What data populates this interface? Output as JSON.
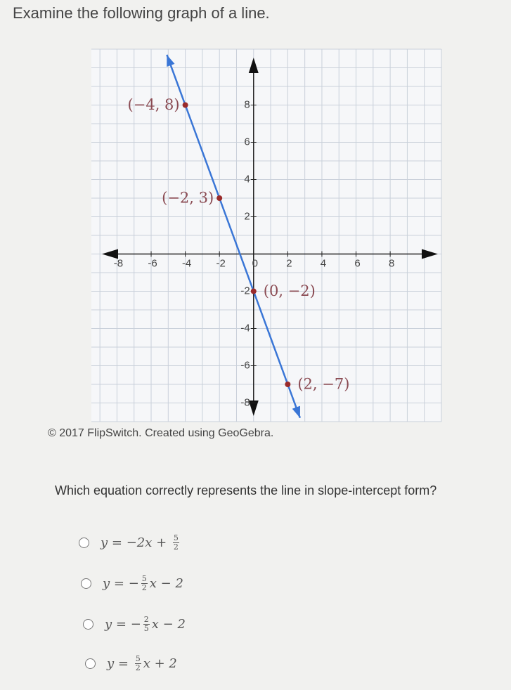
{
  "header": {
    "title": "Examine the following graph of a line."
  },
  "chart_data": {
    "type": "line",
    "x": [
      -4,
      -2,
      0,
      2
    ],
    "values": [
      8,
      3,
      -2,
      -7
    ],
    "point_labels": [
      "(−4, 8)",
      "(−2, 3)",
      "(0, −2)",
      "(2, −7)"
    ],
    "color": "#3a76d6",
    "point_color": "#9a2b2b",
    "xlim": [
      -9.5,
      11
    ],
    "ylim": [
      -9,
      11
    ],
    "xticks": [
      -8,
      -6,
      -4,
      -2,
      0,
      2,
      4,
      6,
      8
    ],
    "yticks": [
      -8,
      -6,
      -4,
      -2,
      2,
      4,
      6,
      8
    ],
    "grid": true,
    "grid_step": 1
  },
  "caption": "© 2017 FlipSwitch. Created using GeoGebra.",
  "question": "Which equation correctly represents the line in slope-intercept form?",
  "options": [
    {
      "tokens": [
        "y = −2x + ",
        {
          "num": "5",
          "den": "2"
        }
      ]
    },
    {
      "tokens": [
        "y = −",
        {
          "num": "5",
          "den": "2"
        },
        "x − 2"
      ]
    },
    {
      "tokens": [
        "y = −",
        {
          "num": "2",
          "den": "5"
        },
        "x − 2"
      ]
    },
    {
      "tokens": [
        "y = ",
        {
          "num": "5",
          "den": "2"
        },
        "x + 2"
      ]
    }
  ]
}
